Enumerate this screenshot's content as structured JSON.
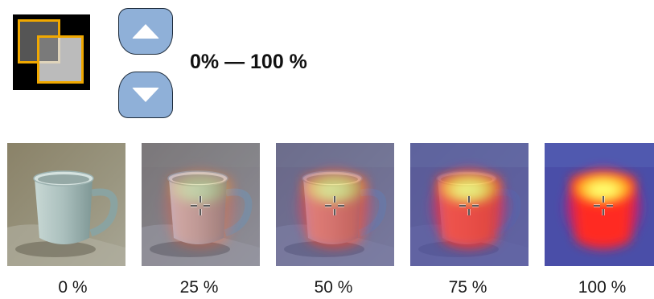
{
  "controls": {
    "blend_icon": "layer-opacity-icon",
    "up_icon": "triangle-up-icon",
    "down_icon": "triangle-down-icon",
    "button_color": "#8fb0d8",
    "range_label": "0% — 100 %"
  },
  "thumbnails": [
    {
      "label": "0 %",
      "opacity": 0.0
    },
    {
      "label": "25 %",
      "opacity": 0.25
    },
    {
      "label": "50 %",
      "opacity": 0.5
    },
    {
      "label": "75 %",
      "opacity": 0.75
    },
    {
      "label": "100 %",
      "opacity": 1.0
    }
  ],
  "colors": {
    "accent_orange": "#f0a800",
    "thermal_background": "#4a4ea8",
    "thermal_hot": "#ffff60",
    "thermal_warm": "#ff3020"
  }
}
